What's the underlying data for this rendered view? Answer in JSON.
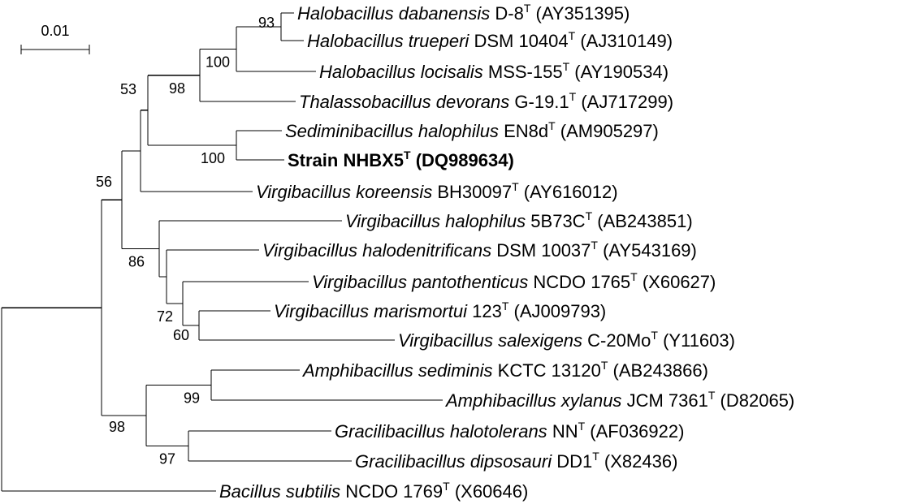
{
  "scale_bar": {
    "label": "0.01"
  },
  "taxa": [
    {
      "id": "hdab",
      "genus": "Halobacillus dabanensis",
      "strain": "D-8",
      "accession": "(AY351395)"
    },
    {
      "id": "htru",
      "genus": "Halobacillus trueperi",
      "strain": "DSM 10404",
      "accession": "(AJ310149)"
    },
    {
      "id": "hloc",
      "genus": "Halobacillus locisalis",
      "strain": "MSS-155",
      "accession": "(AY190534)"
    },
    {
      "id": "tdev",
      "genus": "Thalassobacillus devorans",
      "strain": "G-19.1",
      "accession": "(AJ717299)"
    },
    {
      "id": "shal",
      "genus": "Sediminibacillus halophilus",
      "strain": "EN8d",
      "accession": "(AM905297)"
    },
    {
      "id": "nhbx",
      "genus": "",
      "strain": "Strain NHBX5",
      "accession": "(DQ989634)",
      "bold": true
    },
    {
      "id": "vkor",
      "genus": "Virgibacillus koreensis",
      "strain": "BH30097",
      "accession": "(AY616012)"
    },
    {
      "id": "vhal",
      "genus": "Virgibacillus halophilus",
      "strain": "5B73C",
      "accession": "(AB243851)"
    },
    {
      "id": "vhde",
      "genus": "Virgibacillus halodenitrificans",
      "strain": "DSM 10037",
      "accession": "(AY543169)"
    },
    {
      "id": "vpan",
      "genus": "Virgibacillus pantothenticus",
      "strain": "NCDO 1765",
      "accession": "(X60627)"
    },
    {
      "id": "vmar",
      "genus": "Virgibacillus marismortui",
      "strain": "123",
      "accession": "(AJ009793)"
    },
    {
      "id": "vsal",
      "genus": "Virgibacillus salexigens",
      "strain": "C-20Mo",
      "accession": "(Y11603)"
    },
    {
      "id": "ased",
      "genus": "Amphibacillus sediminis",
      "strain": "KCTC 13120",
      "accession": "(AB243866)"
    },
    {
      "id": "axyl",
      "genus": "Amphibacillus xylanus",
      "strain": "JCM 7361",
      "accession": "(D82065)"
    },
    {
      "id": "ghal",
      "genus": "Gracilibacillus halotolerans",
      "strain": "NN",
      "accession": "(AF036922)"
    },
    {
      "id": "gdip",
      "genus": "Gracilibacillus dipsosauri",
      "strain": "DD1",
      "accession": "(X82436)"
    },
    {
      "id": "bsub",
      "genus": "Bacillus subtilis",
      "strain": "NCDO 1769",
      "accession": "(X60646)"
    }
  ],
  "type_strain_mark": "T",
  "bootstrap_values": [
    "93",
    "100",
    "98",
    "53",
    "100",
    "56",
    "86",
    "72",
    "60",
    "99",
    "98",
    "97"
  ]
}
